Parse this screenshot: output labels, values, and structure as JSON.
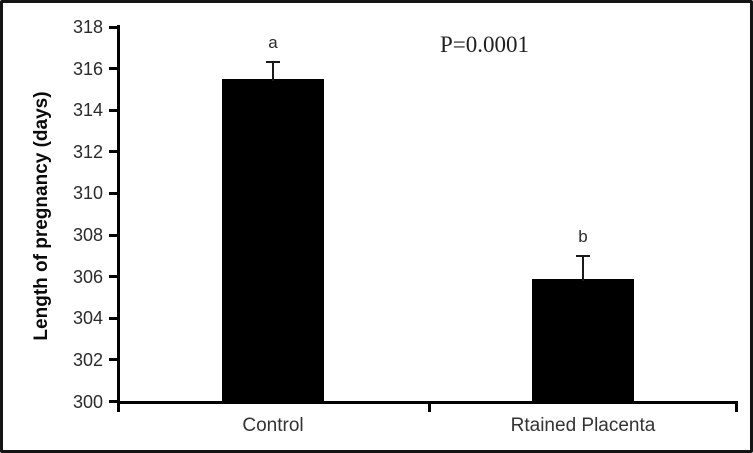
{
  "figure": {
    "border_color": "#141414",
    "background": "#ffffff",
    "text_color": "#2b2b2b"
  },
  "chart_data": {
    "type": "bar",
    "title": "",
    "categories": [
      "Control",
      "Rtained Placenta"
    ],
    "values": [
      315.5,
      305.9
    ],
    "error_upper": [
      0.8,
      1.1
    ],
    "bar_labels": [
      "a",
      "b"
    ],
    "annotation": "P=0.0001",
    "xlabel": "",
    "ylabel": "Length of pregnancy (days)",
    "ylim": [
      300,
      318
    ],
    "yticks": [
      300,
      302,
      304,
      306,
      308,
      310,
      312,
      314,
      316,
      318
    ],
    "bar_color": "#000000",
    "grid": false,
    "legend": false
  }
}
